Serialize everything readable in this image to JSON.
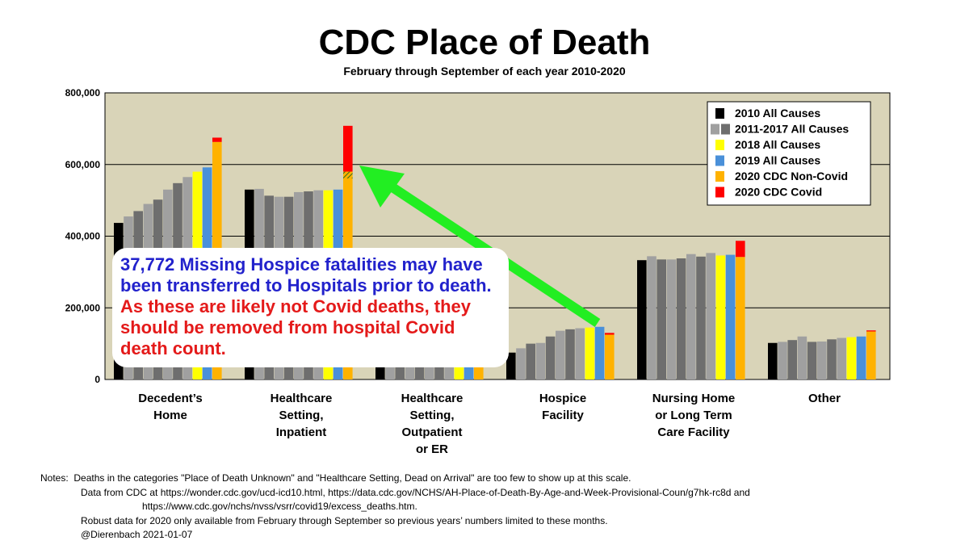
{
  "chart_data": {
    "type": "bar",
    "title": "CDC Place of Death",
    "subtitle": "February through September of each year 2010-2020",
    "ylim": [
      0,
      800000
    ],
    "yticks": [
      "0",
      "200,000",
      "400,000",
      "600,000",
      "800,000"
    ],
    "ytick_values": [
      0,
      200000,
      400000,
      600000,
      800000
    ],
    "grid": true,
    "legend_placement": "top-right",
    "categories": [
      "Decedent’s Home",
      "Healthcare Setting, Inpatient",
      "Healthcare Setting, Outpatient or ER",
      "Hospice Facility",
      "Nursing Home or Long Term Care Facility",
      "Other"
    ],
    "category_label_lines": [
      [
        "Decedent’s",
        "Home"
      ],
      [
        "Healthcare",
        "Setting,",
        "Inpatient"
      ],
      [
        "Healthcare",
        "Setting,",
        "Outpatient",
        "or ER"
      ],
      [
        "Hospice",
        "Facility"
      ],
      [
        "Nursing Home",
        "or Long Term",
        "Care Facility"
      ],
      [
        "Other"
      ]
    ],
    "legend": [
      {
        "label": "2010 All Causes",
        "colors": [
          "#000000"
        ]
      },
      {
        "label": "2011-2017 All Causes",
        "colors": [
          "#a0a0a0",
          "#6e6e6e"
        ]
      },
      {
        "label": "2018 All Causes",
        "colors": [
          "#ffff00"
        ]
      },
      {
        "label": "2019 All Causes",
        "colors": [
          "#4a90d9"
        ]
      },
      {
        "label": "2020 CDC Non-Covid",
        "colors": [
          "#ffb200"
        ]
      },
      {
        "label": "2020 CDC Covid",
        "colors": [
          "#ff0000"
        ]
      }
    ],
    "series": [
      {
        "name": "2010 All Causes",
        "color": "#000000",
        "values": [
          437000,
          530000,
          123000,
          75000,
          333000,
          102000
        ]
      },
      {
        "name": "2011",
        "color": "#a0a0a0",
        "values": [
          455000,
          532000,
          121000,
          87000,
          344000,
          105000
        ]
      },
      {
        "name": "2012",
        "color": "#6e6e6e",
        "values": [
          470000,
          513000,
          124000,
          100000,
          335000,
          110000
        ]
      },
      {
        "name": "2013",
        "color": "#a0a0a0",
        "values": [
          490000,
          510000,
          127000,
          102000,
          335000,
          120000
        ]
      },
      {
        "name": "2014",
        "color": "#6e6e6e",
        "values": [
          502000,
          510000,
          124000,
          120000,
          338000,
          105000
        ]
      },
      {
        "name": "2015",
        "color": "#a0a0a0",
        "values": [
          530000,
          523000,
          125000,
          136000,
          350000,
          106000
        ]
      },
      {
        "name": "2016",
        "color": "#6e6e6e",
        "values": [
          548000,
          525000,
          127000,
          140000,
          343000,
          112000
        ]
      },
      {
        "name": "2017",
        "color": "#a0a0a0",
        "values": [
          565000,
          528000,
          130000,
          143000,
          353000,
          116000
        ]
      },
      {
        "name": "2018 All Causes",
        "color": "#ffff00",
        "values": [
          580000,
          528000,
          130000,
          145000,
          346000,
          118000
        ]
      },
      {
        "name": "2019 All Causes",
        "color": "#4a90d9",
        "values": [
          592000,
          530000,
          132000,
          147000,
          348000,
          120000
        ]
      },
      {
        "name": "2020 CDC Non-Covid",
        "color": "#ffb200",
        "values": [
          663000,
          580000,
          131000,
          125000,
          342000,
          134000
        ]
      },
      {
        "name": "2020 CDC Covid",
        "color": "#ff0000",
        "values": [
          12000,
          128000,
          0,
          5000,
          45000,
          3000
        ],
        "stacked_on": "2020 CDC Non-Covid"
      }
    ],
    "annotation": {
      "missing_hospice_fatalities": 37772,
      "text_blue": "37,772 Missing Hospice fatalities may have been transferred to Hospitals prior to death.",
      "text_red": "As these are likely not Covid deaths, they should be removed from hospital Covid death count.",
      "arrow_from_category": "Hospice Facility",
      "arrow_to_category": "Healthcare Setting, Inpatient",
      "arrow_color": "#22ee22"
    }
  },
  "notes": {
    "lead": "Notes:",
    "lines": [
      "Deaths in the categories \"Place of Death Unknown\" and \"Healthcare Setting, Dead on Arrival\" are too few to show up at this scale.",
      "Data from CDC at https://wonder.cdc.gov/ucd-icd10.html, https://data.cdc.gov/NCHS/AH-Place-of-Death-By-Age-and-Week-Provisional-Coun/g7hk-rc8d and",
      "https://www.cdc.gov/nchs/nvss/vsrr/covid19/excess_deaths.htm.",
      "Robust data for 2020 only available from February through September so previous years’ numbers limited to these months.",
      "@Dierenbach 2021-01-07"
    ]
  }
}
